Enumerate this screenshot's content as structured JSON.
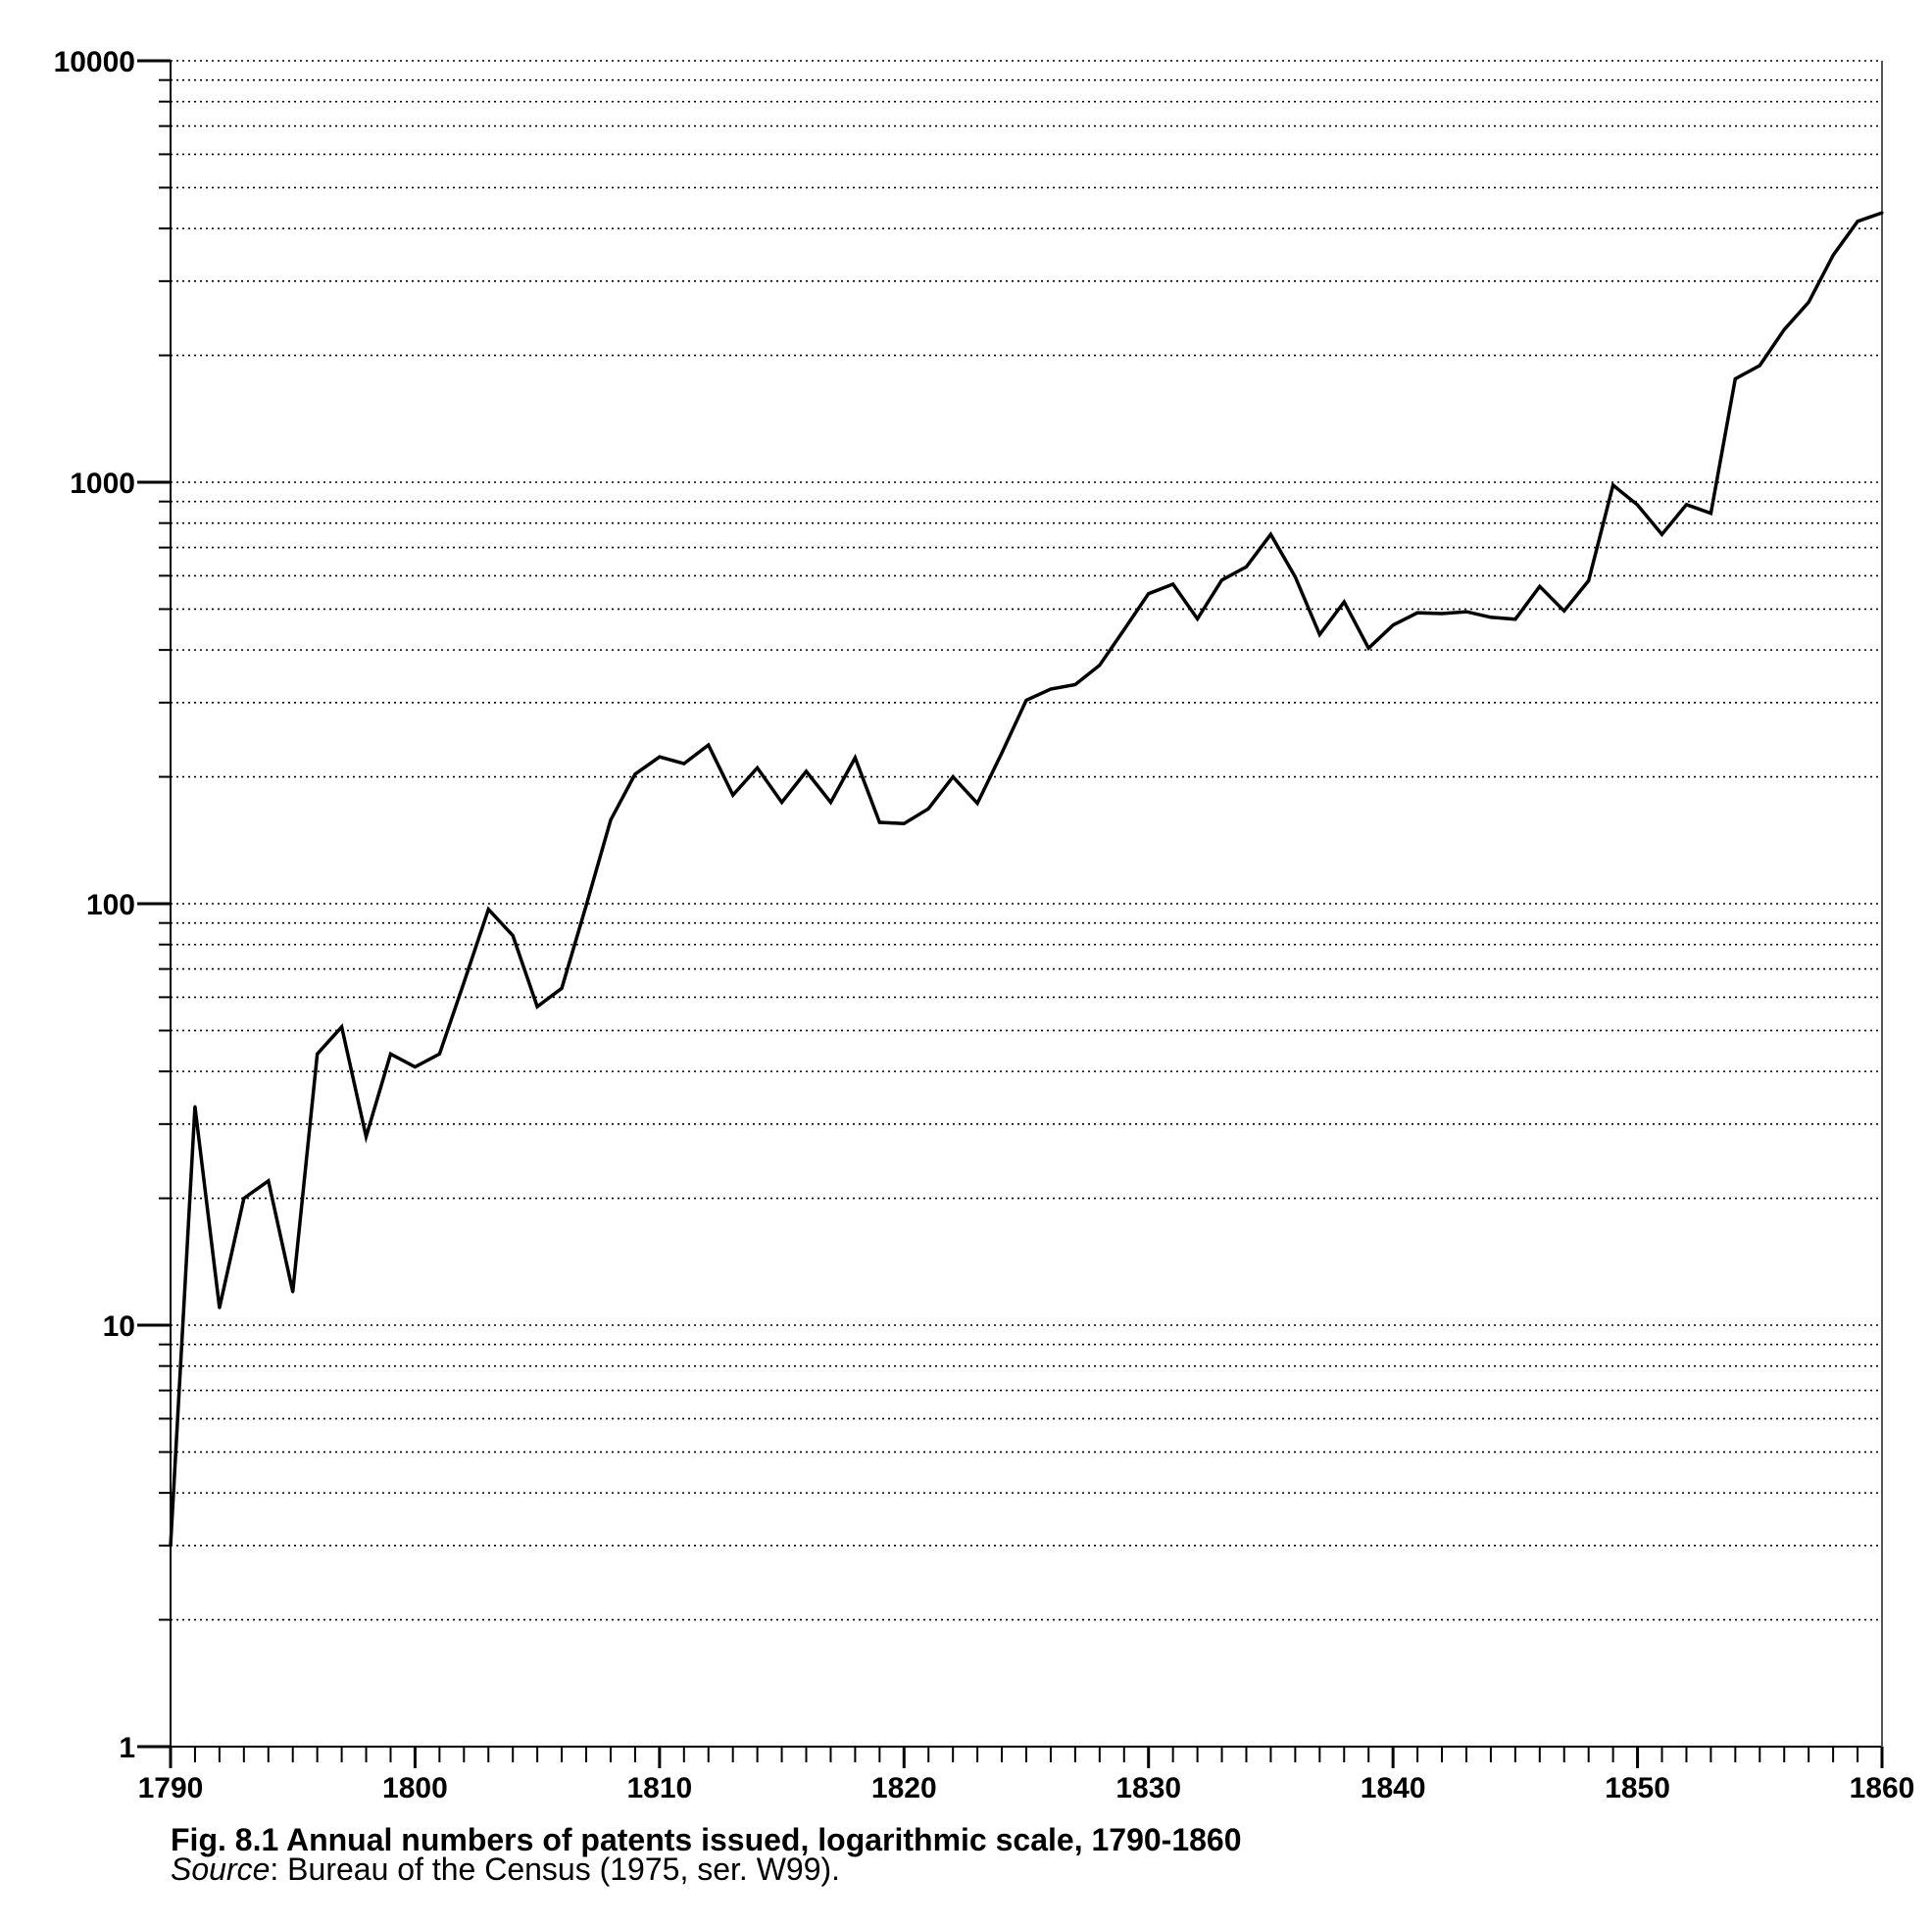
{
  "caption": {
    "title": "Fig. 8.1 Annual numbers of patents issued, logarithmic scale, 1790-1860",
    "source_label": "Source",
    "source_text": ": Bureau of the Census (1975, ser. W99)."
  },
  "chart_data": {
    "type": "line",
    "title": "Fig. 8.1 Annual numbers of patents issued, logarithmic scale, 1790-1860",
    "xlabel": "",
    "ylabel": "",
    "y_scale": "log",
    "xlim": [
      1790,
      1860
    ],
    "ylim": [
      1,
      10000
    ],
    "x_tick_labels": [
      "1790",
      "1800",
      "1810",
      "1820",
      "1830",
      "1840",
      "1850",
      "1860"
    ],
    "y_tick_labels": [
      "1",
      "10",
      "100",
      "1000",
      "10000"
    ],
    "grid": "dotted horizontal lines at every minor log tick",
    "x": [
      1790,
      1791,
      1792,
      1793,
      1794,
      1795,
      1796,
      1797,
      1798,
      1799,
      1800,
      1801,
      1802,
      1803,
      1804,
      1805,
      1806,
      1807,
      1808,
      1809,
      1810,
      1811,
      1812,
      1813,
      1814,
      1815,
      1816,
      1817,
      1818,
      1819,
      1820,
      1821,
      1822,
      1823,
      1824,
      1825,
      1826,
      1827,
      1828,
      1829,
      1830,
      1831,
      1832,
      1833,
      1834,
      1835,
      1836,
      1837,
      1838,
      1839,
      1840,
      1841,
      1842,
      1843,
      1844,
      1845,
      1846,
      1847,
      1848,
      1849,
      1850,
      1851,
      1852,
      1853,
      1854,
      1855,
      1856,
      1857,
      1858,
      1859,
      1860
    ],
    "series": [
      {
        "values": [
          3,
          33,
          11,
          20,
          22,
          12,
          44,
          51,
          28,
          44,
          41,
          44,
          65,
          97,
          84,
          57,
          63,
          99,
          158,
          203,
          223,
          215,
          238,
          181,
          210,
          174,
          206,
          174,
          222,
          156,
          155,
          168,
          200,
          173,
          228,
          304,
          323,
          331,
          368,
          447,
          544,
          573,
          474,
          586,
          630,
          752,
          596,
          435,
          520,
          404,
          458,
          490,
          488,
          493,
          478,
          473,
          566,
          495,
          584,
          984,
          883,
          752,
          885,
          844,
          1759,
          1892,
          2302,
          2674,
          3455,
          4160,
          4357
        ]
      }
    ]
  }
}
